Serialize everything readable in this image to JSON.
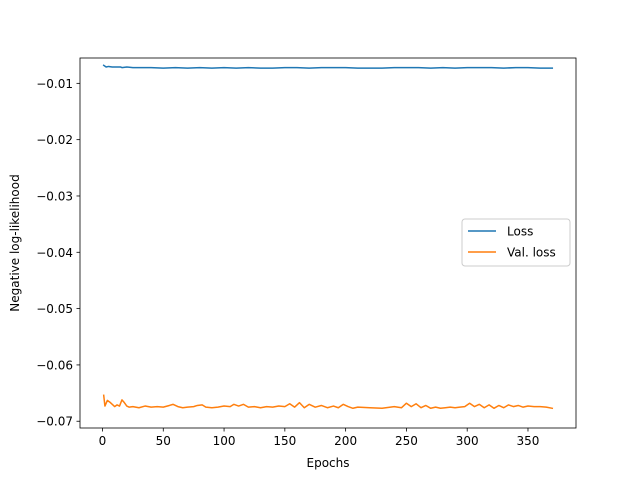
{
  "chart_data": {
    "type": "line",
    "title": "",
    "xlabel": "Epochs",
    "ylabel": "Negative log-likelihood",
    "xlim": [
      -18.5,
      389.5
    ],
    "ylim": [
      -0.0712,
      -0.0055
    ],
    "xticks": [
      0,
      50,
      100,
      150,
      200,
      250,
      300,
      350
    ],
    "yticks": [
      -0.01,
      -0.02,
      -0.03,
      -0.04,
      -0.05,
      -0.06,
      -0.07
    ],
    "xtick_labels": [
      "0",
      "50",
      "100",
      "150",
      "200",
      "250",
      "300",
      "350"
    ],
    "ytick_labels": [
      "−0.01",
      "−0.02",
      "−0.03",
      "−0.04",
      "−0.05",
      "−0.06",
      "−0.07"
    ],
    "grid": false,
    "legend": "center-right",
    "series": [
      {
        "name": "Loss",
        "color": "#1f77b4",
        "x": [
          1,
          3,
          5,
          8,
          10,
          15,
          16,
          20,
          25,
          30,
          40,
          50,
          60,
          70,
          80,
          90,
          100,
          110,
          120,
          130,
          140,
          150,
          160,
          170,
          180,
          190,
          200,
          210,
          220,
          230,
          240,
          250,
          260,
          270,
          280,
          290,
          300,
          310,
          320,
          330,
          340,
          350,
          360,
          370
        ],
        "y": [
          -0.0068,
          -0.0071,
          -0.007,
          -0.0071,
          -0.0071,
          -0.0071,
          -0.0072,
          -0.0071,
          -0.0072,
          -0.0072,
          -0.0072,
          -0.0073,
          -0.0072,
          -0.0073,
          -0.0072,
          -0.0073,
          -0.0072,
          -0.0073,
          -0.0072,
          -0.0073,
          -0.0073,
          -0.0072,
          -0.0072,
          -0.0073,
          -0.0072,
          -0.0072,
          -0.0072,
          -0.0073,
          -0.0073,
          -0.0073,
          -0.0072,
          -0.0072,
          -0.0072,
          -0.0073,
          -0.0072,
          -0.0073,
          -0.0072,
          -0.0072,
          -0.0072,
          -0.0073,
          -0.0072,
          -0.0072,
          -0.0073,
          -0.0073
        ]
      },
      {
        "name": "Val. loss",
        "color": "#ff7f0e",
        "x": [
          1,
          2,
          4,
          6,
          8,
          10,
          12,
          14,
          16,
          18,
          20,
          22,
          25,
          30,
          35,
          40,
          45,
          50,
          55,
          58,
          62,
          66,
          70,
          75,
          78,
          82,
          85,
          90,
          95,
          100,
          105,
          108,
          112,
          116,
          120,
          125,
          130,
          135,
          140,
          145,
          150,
          154,
          158,
          162,
          166,
          170,
          175,
          180,
          185,
          190,
          194,
          198,
          202,
          206,
          210,
          220,
          230,
          240,
          246,
          250,
          254,
          258,
          262,
          266,
          270,
          274,
          278,
          282,
          286,
          290,
          294,
          298,
          302,
          306,
          310,
          314,
          318,
          322,
          326,
          330,
          334,
          338,
          342,
          346,
          350,
          355,
          360,
          365,
          370
        ],
        "y": [
          -0.0654,
          -0.0673,
          -0.0663,
          -0.0666,
          -0.067,
          -0.0674,
          -0.0671,
          -0.0673,
          -0.0662,
          -0.0667,
          -0.0673,
          -0.0675,
          -0.0674,
          -0.0676,
          -0.0673,
          -0.0675,
          -0.0674,
          -0.0675,
          -0.0672,
          -0.067,
          -0.0674,
          -0.0676,
          -0.0675,
          -0.0674,
          -0.0672,
          -0.0671,
          -0.0675,
          -0.0676,
          -0.0675,
          -0.0673,
          -0.0674,
          -0.067,
          -0.0673,
          -0.067,
          -0.0675,
          -0.0674,
          -0.0676,
          -0.0674,
          -0.0675,
          -0.0673,
          -0.0674,
          -0.0669,
          -0.0675,
          -0.0667,
          -0.0676,
          -0.067,
          -0.0675,
          -0.0672,
          -0.0676,
          -0.0673,
          -0.0676,
          -0.067,
          -0.0674,
          -0.0677,
          -0.0675,
          -0.0676,
          -0.0677,
          -0.0674,
          -0.0676,
          -0.0668,
          -0.0674,
          -0.0669,
          -0.0676,
          -0.0672,
          -0.0677,
          -0.0675,
          -0.0677,
          -0.0676,
          -0.0675,
          -0.0676,
          -0.0675,
          -0.0674,
          -0.0668,
          -0.0674,
          -0.067,
          -0.0676,
          -0.0671,
          -0.0677,
          -0.0672,
          -0.0676,
          -0.0671,
          -0.0674,
          -0.0672,
          -0.0675,
          -0.0673,
          -0.0674,
          -0.0674,
          -0.0675,
          -0.0677
        ]
      }
    ]
  }
}
